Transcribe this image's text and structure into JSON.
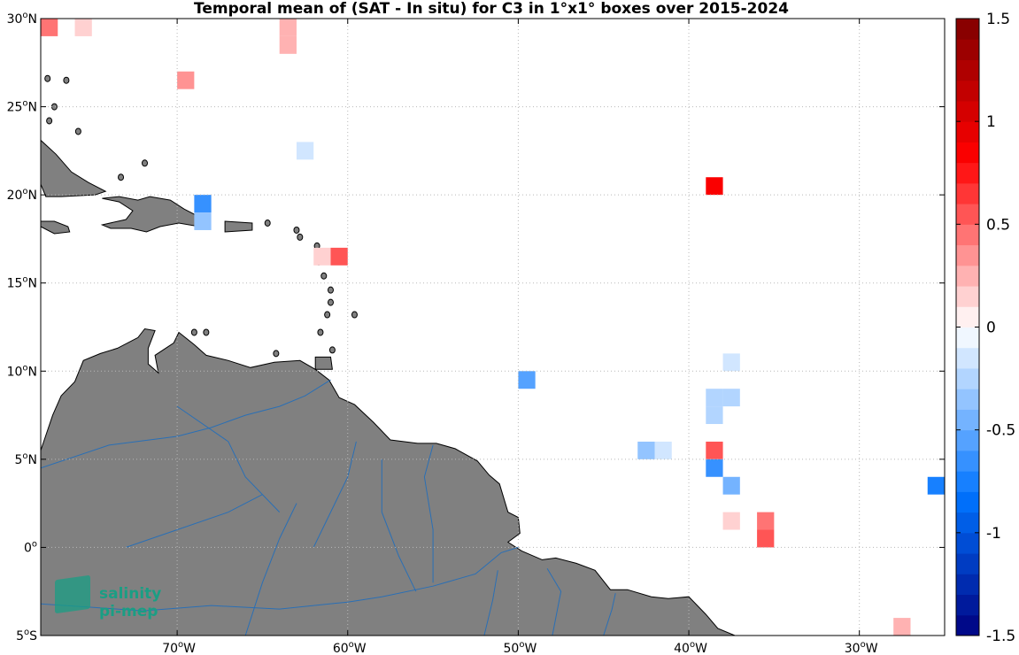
{
  "title": "Temporal mean of (SAT - In situ) for C3 in 1°x1° boxes over 2015-2024",
  "map": {
    "lon_range": [
      -78,
      -25
    ],
    "lat_range": [
      -5,
      30
    ],
    "land_color": "#808080",
    "river_color": "#2a6fb5",
    "ocean_color": "#ffffff",
    "grid": true,
    "x_ticks": [
      {
        "lon": -70,
        "label": "70",
        "suffix": "W"
      },
      {
        "lon": -60,
        "label": "60",
        "suffix": "W"
      },
      {
        "lon": -50,
        "label": "50",
        "suffix": "W"
      },
      {
        "lon": -40,
        "label": "40",
        "suffix": "W"
      },
      {
        "lon": -30,
        "label": "30",
        "suffix": "W"
      }
    ],
    "y_ticks": [
      {
        "lat": 30,
        "label": "30",
        "suffix": "N"
      },
      {
        "lat": 25,
        "label": "25",
        "suffix": "N"
      },
      {
        "lat": 20,
        "label": "20",
        "suffix": "N"
      },
      {
        "lat": 15,
        "label": "15",
        "suffix": "N"
      },
      {
        "lat": 10,
        "label": "10",
        "suffix": "N"
      },
      {
        "lat": 5,
        "label": "5",
        "suffix": "N"
      },
      {
        "lat": 0,
        "label": "0",
        "suffix": ""
      },
      {
        "lat": -5,
        "label": "5",
        "suffix": "S"
      }
    ],
    "cells": [
      {
        "lon": -78,
        "lat": 29,
        "value": 0.45
      },
      {
        "lon": -76,
        "lat": 29,
        "value": 0.12
      },
      {
        "lon": -64,
        "lat": 29,
        "value": 0.25
      },
      {
        "lon": -64,
        "lat": 28,
        "value": 0.25
      },
      {
        "lon": -70,
        "lat": 26,
        "value": 0.3
      },
      {
        "lon": -63,
        "lat": 22,
        "value": -0.12
      },
      {
        "lon": -39,
        "lat": 20,
        "value": 0.85
      },
      {
        "lon": -69,
        "lat": 19,
        "value": -0.7
      },
      {
        "lon": -69,
        "lat": 18,
        "value": -0.35
      },
      {
        "lon": -61,
        "lat": 16,
        "value": 0.55
      },
      {
        "lon": -62,
        "lat": 16,
        "value": 0.12
      },
      {
        "lon": -38,
        "lat": 10,
        "value": -0.12
      },
      {
        "lon": -50,
        "lat": 9,
        "value": -0.6
      },
      {
        "lon": -39,
        "lat": 8,
        "value": -0.25
      },
      {
        "lon": -38,
        "lat": 8,
        "value": -0.25
      },
      {
        "lon": -39,
        "lat": 7,
        "value": -0.25
      },
      {
        "lon": -43,
        "lat": 5,
        "value": -0.35
      },
      {
        "lon": -42,
        "lat": 5,
        "value": -0.15
      },
      {
        "lon": -39,
        "lat": 5,
        "value": 0.5
      },
      {
        "lon": -39,
        "lat": 4,
        "value": -0.7
      },
      {
        "lon": -38,
        "lat": 3,
        "value": -0.45
      },
      {
        "lon": -26,
        "lat": 3,
        "value": -0.75
      },
      {
        "lon": -38,
        "lat": 1,
        "value": 0.12
      },
      {
        "lon": -36,
        "lat": 1,
        "value": 0.45
      },
      {
        "lon": -36,
        "lat": 0,
        "value": 0.55
      },
      {
        "lon": -28,
        "lat": -5,
        "value": 0.25
      }
    ]
  },
  "colorbar": {
    "range": [
      -1.5,
      1.5
    ],
    "ticks": [
      "1.5",
      "1",
      "0.5",
      "0",
      "-0.5",
      "-1",
      "-1.5"
    ],
    "tick_values": [
      1.5,
      1,
      0.5,
      0,
      -0.5,
      -1,
      -1.5
    ],
    "levels": 30
  },
  "logo": {
    "line1": "salinity",
    "line2": "pi-mep",
    "color": "#1a9e84"
  }
}
